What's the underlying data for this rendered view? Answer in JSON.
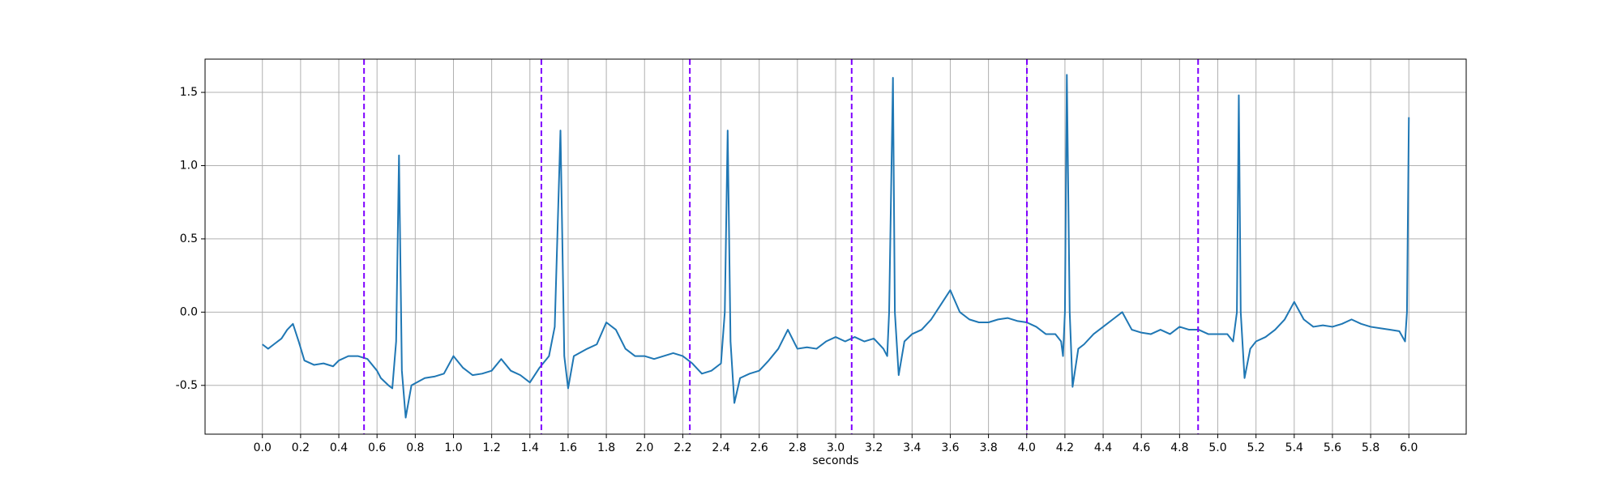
{
  "chart_data": {
    "type": "line",
    "xlabel": "seconds",
    "x": [
      0.0,
      0.03,
      0.06,
      0.1,
      0.13,
      0.16,
      0.19,
      0.22,
      0.27,
      0.32,
      0.37,
      0.4,
      0.45,
      0.5,
      0.55,
      0.6,
      0.62,
      0.66,
      0.68,
      0.7,
      0.715,
      0.73,
      0.75,
      0.78,
      0.85,
      0.9,
      0.95,
      1.0,
      1.05,
      1.1,
      1.15,
      1.2,
      1.25,
      1.3,
      1.35,
      1.4,
      1.45,
      1.5,
      1.53,
      1.56,
      1.58,
      1.6,
      1.63,
      1.7,
      1.75,
      1.8,
      1.85,
      1.9,
      1.95,
      2.0,
      2.05,
      2.1,
      2.15,
      2.2,
      2.25,
      2.3,
      2.35,
      2.4,
      2.42,
      2.435,
      2.45,
      2.47,
      2.5,
      2.55,
      2.6,
      2.65,
      2.7,
      2.75,
      2.8,
      2.85,
      2.9,
      2.95,
      3.0,
      3.05,
      3.1,
      3.15,
      3.2,
      3.25,
      3.27,
      3.28,
      3.3,
      3.31,
      3.33,
      3.36,
      3.4,
      3.45,
      3.5,
      3.55,
      3.6,
      3.65,
      3.7,
      3.75,
      3.8,
      3.85,
      3.9,
      3.95,
      4.0,
      4.05,
      4.1,
      4.15,
      4.18,
      4.19,
      4.2,
      4.21,
      4.225,
      4.24,
      4.27,
      4.3,
      4.35,
      4.4,
      4.45,
      4.5,
      4.55,
      4.6,
      4.65,
      4.7,
      4.75,
      4.8,
      4.85,
      4.9,
      4.95,
      5.0,
      5.05,
      5.08,
      5.1,
      5.11,
      5.12,
      5.14,
      5.17,
      5.2,
      5.25,
      5.3,
      5.35,
      5.4,
      5.45,
      5.5,
      5.55,
      5.6,
      5.65,
      5.7,
      5.75,
      5.8,
      5.85,
      5.9,
      5.95,
      5.98,
      5.99,
      6.0
    ],
    "series": [
      {
        "color": "#1f77b4",
        "values": [
          -0.22,
          -0.25,
          -0.22,
          -0.18,
          -0.12,
          -0.08,
          -0.2,
          -0.33,
          -0.36,
          -0.35,
          -0.37,
          -0.33,
          -0.3,
          -0.3,
          -0.32,
          -0.4,
          -0.45,
          -0.5,
          -0.52,
          -0.2,
          1.07,
          -0.4,
          -0.72,
          -0.5,
          -0.45,
          -0.44,
          -0.42,
          -0.3,
          -0.38,
          -0.43,
          -0.42,
          -0.4,
          -0.32,
          -0.4,
          -0.43,
          -0.48,
          -0.38,
          -0.3,
          -0.1,
          1.24,
          -0.3,
          -0.52,
          -0.3,
          -0.25,
          -0.22,
          -0.07,
          -0.12,
          -0.25,
          -0.3,
          -0.3,
          -0.32,
          -0.3,
          -0.28,
          -0.3,
          -0.35,
          -0.42,
          -0.4,
          -0.35,
          0.0,
          1.24,
          -0.2,
          -0.62,
          -0.45,
          -0.42,
          -0.4,
          -0.33,
          -0.25,
          -0.12,
          -0.25,
          -0.24,
          -0.25,
          -0.2,
          -0.17,
          -0.2,
          -0.17,
          -0.2,
          -0.18,
          -0.25,
          -0.3,
          0.0,
          1.6,
          0.0,
          -0.43,
          -0.2,
          -0.15,
          -0.12,
          -0.05,
          0.05,
          0.15,
          0.0,
          -0.05,
          -0.07,
          -0.07,
          -0.05,
          -0.04,
          -0.06,
          -0.07,
          -0.1,
          -0.15,
          -0.15,
          -0.2,
          -0.3,
          0.0,
          1.62,
          0.0,
          -0.51,
          -0.25,
          -0.22,
          -0.15,
          -0.1,
          -0.05,
          0.0,
          -0.12,
          -0.14,
          -0.15,
          -0.12,
          -0.15,
          -0.1,
          -0.12,
          -0.12,
          -0.15,
          -0.15,
          -0.15,
          -0.2,
          0.0,
          1.48,
          0.0,
          -0.45,
          -0.25,
          -0.2,
          -0.17,
          -0.12,
          -0.05,
          0.07,
          -0.05,
          -0.1,
          -0.09,
          -0.1,
          -0.08,
          -0.05,
          -0.08,
          -0.1,
          -0.11,
          -0.12,
          -0.13,
          -0.2,
          0.0,
          1.33
        ]
      }
    ],
    "vlines": {
      "color": "#7f00ff",
      "x": [
        0.532,
        1.46,
        2.237,
        3.084,
        4.001,
        4.897
      ]
    },
    "xlim": [
      -0.3,
      6.3
    ],
    "ylim": [
      -0.833,
      1.727
    ],
    "xticks": [
      {
        "value": 0,
        "label": "0.0"
      },
      0.2,
      0.4,
      0.6,
      0.8,
      {
        "value": 1,
        "label": "1.0"
      },
      1.2,
      1.4,
      1.6,
      1.8,
      {
        "value": 2,
        "label": "2.0"
      },
      2.2,
      2.4,
      2.6,
      2.8,
      {
        "value": 3,
        "label": "3.0"
      },
      3.2,
      3.4,
      3.6,
      3.8,
      {
        "value": 4,
        "label": "4.0"
      },
      4.2,
      4.4,
      4.6,
      4.8,
      {
        "value": 5,
        "label": "5.0"
      },
      5.2,
      5.4,
      5.6,
      5.8,
      {
        "value": 6,
        "label": "6.0"
      }
    ],
    "yticks": [
      -0.5,
      {
        "value": 0,
        "label": "0.0"
      },
      0.5,
      {
        "value": 1,
        "label": "1.0"
      },
      1.5
    ],
    "grid": true
  }
}
